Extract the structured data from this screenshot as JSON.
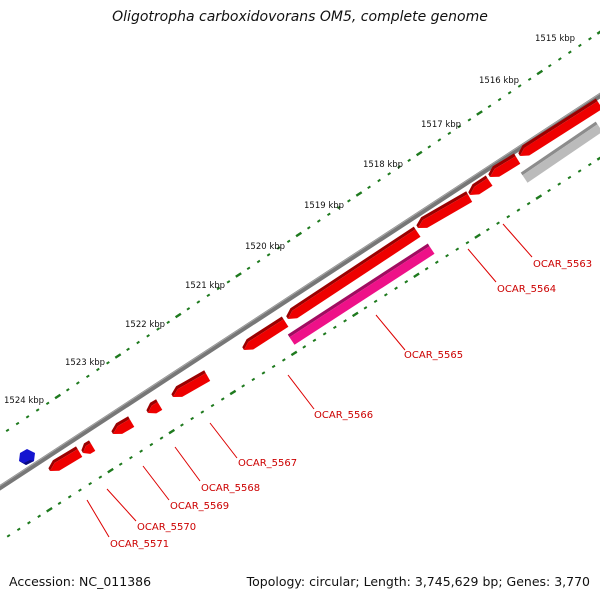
{
  "title": "Oligotropha carboxidovorans OM5, complete genome",
  "accession": "Accession: NC_011386",
  "summary": "Topology: circular; Length: 3,745,629 bp; Genes: 3,770",
  "ticks": [
    "1515 kbp",
    "1516 kbp",
    "1517 kbp",
    "1518 kbp",
    "1519 kbp",
    "1520 kbp",
    "1521 kbp",
    "1522 kbp",
    "1523 kbp",
    "1524 kbp"
  ],
  "genes": [
    {
      "label": "OCAR_5563",
      "color": "#ee0000"
    },
    {
      "label": "OCAR_5564",
      "color": "#ee0000"
    },
    {
      "label": "OCAR_5565",
      "color": "#ee1188"
    },
    {
      "label": "OCAR_5566",
      "color": "#ee0000"
    },
    {
      "label": "OCAR_5567",
      "color": "#ee0000"
    },
    {
      "label": "OCAR_5568",
      "color": "#ee0000"
    },
    {
      "label": "OCAR_5569",
      "color": "#ee0000"
    },
    {
      "label": "OCAR_5570",
      "color": "#ee0000"
    },
    {
      "label": "OCAR_5571",
      "color": "#ee0000"
    }
  ],
  "colors": {
    "backbone": "#777777",
    "ticks": "#1e7a1e",
    "label_text": "#cc0000",
    "leader_line": "#dd0000",
    "reverse_gene": "#ee0000",
    "rna_gene": "#ee1188",
    "pseudo_gene": "#bbbbbb",
    "other_gene": "#1515d0"
  }
}
